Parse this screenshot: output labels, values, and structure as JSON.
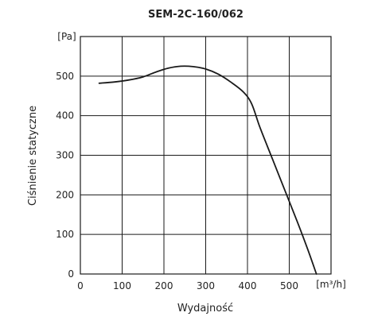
{
  "chart_data": {
    "type": "line",
    "title": "SEM-2C-160/062",
    "xlabel": "Wydajność",
    "ylabel": "Ciśnienie statyczne",
    "x_unit": "[m³/h]",
    "y_unit": "[Pa]",
    "xlim": [
      0,
      600
    ],
    "ylim": [
      0,
      600
    ],
    "x_ticks": [
      "0",
      "100",
      "200",
      "300",
      "400",
      "500"
    ],
    "y_ticks": [
      "0",
      "100",
      "200",
      "300",
      "400",
      "500"
    ],
    "x_tick_values": [
      0,
      100,
      200,
      300,
      400,
      500
    ],
    "y_tick_values": [
      0,
      100,
      200,
      300,
      400,
      500
    ],
    "grid": true,
    "series": [
      {
        "x": [
          45,
          80,
          115,
          150,
          180,
          210,
          240,
          270,
          300,
          330,
          360,
          390,
          410,
          430,
          460,
          490,
          520,
          545,
          565
        ],
        "y": [
          482,
          485,
          490,
          498,
          510,
          520,
          525,
          524,
          518,
          505,
          485,
          460,
          430,
          370,
          290,
          210,
          130,
          60,
          0
        ]
      }
    ]
  }
}
